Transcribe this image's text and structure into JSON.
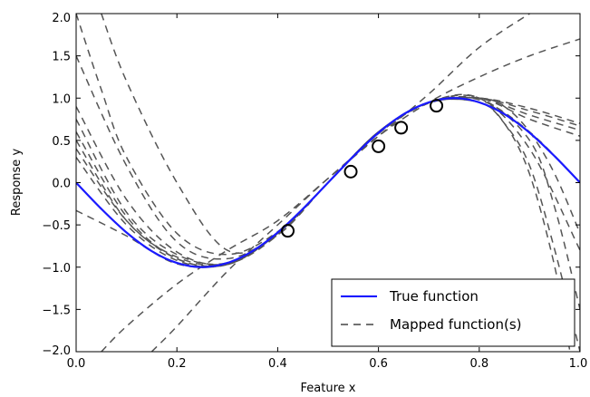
{
  "chart_data": {
    "type": "line",
    "title": "",
    "xlabel": "Feature x",
    "ylabel": "Response y",
    "xlim": [
      0.0,
      1.0
    ],
    "ylim": [
      -2.0,
      2.0
    ],
    "xticks": [
      "0.0",
      "0.2",
      "0.4",
      "0.6",
      "0.8",
      "1.0"
    ],
    "yticks": [
      "2.0",
      "1.5",
      "1.0",
      "0.5",
      "0.0",
      "−0.5",
      "−1.0",
      "−1.5",
      "−2.0"
    ],
    "grid": false,
    "legend": {
      "placement": "lower-right",
      "entries": [
        {
          "label": "True function",
          "style": "solid",
          "color": "#0000ff"
        },
        {
          "label": "Mapped function(s)",
          "style": "dashed",
          "color": "#444444"
        }
      ]
    },
    "colors": {
      "true_function": "#1a1aff",
      "mapped": "#555555",
      "points": "#000000"
    },
    "true_function": {
      "name": "True function",
      "x": [
        0.0,
        0.05,
        0.1,
        0.15,
        0.2,
        0.25,
        0.3,
        0.35,
        0.4,
        0.45,
        0.5,
        0.55,
        0.6,
        0.65,
        0.7,
        0.75,
        0.8,
        0.85,
        0.9,
        0.95,
        1.0
      ],
      "y": [
        0.0,
        -0.31,
        -0.59,
        -0.81,
        -0.95,
        -1.0,
        -0.95,
        -0.81,
        -0.59,
        -0.31,
        0.0,
        0.31,
        0.59,
        0.81,
        0.95,
        1.0,
        0.95,
        0.81,
        0.59,
        0.31,
        0.0
      ]
    },
    "observed_points": {
      "x": [
        0.42,
        0.545,
        0.6,
        0.645,
        0.715
      ],
      "y": [
        -0.57,
        0.13,
        0.43,
        0.65,
        0.91
      ]
    },
    "mapped_series": [
      {
        "x": [
          0.0,
          0.1,
          0.2,
          0.3,
          0.4,
          0.5,
          0.6,
          0.7,
          0.8,
          0.9,
          1.0
        ],
        "y": [
          -0.33,
          -0.63,
          -0.96,
          -0.96,
          -0.6,
          0.0,
          0.6,
          0.95,
          1.0,
          0.8,
          0.62
        ]
      },
      {
        "x": [
          0.0,
          0.1,
          0.2,
          0.3,
          0.4,
          0.5,
          0.6,
          0.7,
          0.8,
          0.9,
          1.0
        ],
        "y": [
          0.6,
          -0.4,
          -0.9,
          -0.96,
          -0.6,
          0.0,
          0.59,
          0.94,
          1.0,
          0.85,
          0.67
        ]
      },
      {
        "x": [
          0.0,
          0.1,
          0.2,
          0.3,
          0.4,
          0.5,
          0.6,
          0.7,
          0.8,
          0.9,
          1.0
        ],
        "y": [
          0.9,
          -0.2,
          -0.82,
          -0.96,
          -0.62,
          0.0,
          0.58,
          0.95,
          1.0,
          0.88,
          0.7
        ]
      },
      {
        "x": [
          0.0,
          0.1,
          0.2,
          0.3,
          0.4,
          0.5,
          0.6,
          0.7,
          0.8,
          0.9,
          1.0
        ],
        "y": [
          0.4,
          -0.45,
          -0.9,
          -0.97,
          -0.6,
          0.0,
          0.6,
          0.95,
          1.0,
          0.75,
          0.55
        ]
      },
      {
        "x": [
          0.0,
          0.1,
          0.2,
          0.3,
          0.4,
          0.5,
          0.6,
          0.7,
          0.8,
          0.9,
          1.0
        ],
        "y": [
          1.5,
          0.2,
          -0.7,
          -0.9,
          -0.6,
          0.0,
          0.6,
          0.95,
          0.98,
          0.6,
          0.0
        ]
      },
      {
        "x": [
          0.0,
          0.05,
          0.1,
          0.2,
          0.3,
          0.4,
          0.5,
          0.6,
          0.7,
          0.8,
          0.9,
          1.0
        ],
        "y": [
          2.0,
          1.1,
          0.3,
          -0.6,
          -0.85,
          -0.58,
          0.0,
          0.6,
          0.95,
          1.0,
          0.4,
          -0.8
        ]
      },
      {
        "x": [
          0.05,
          0.1,
          0.2,
          0.3,
          0.4,
          0.5,
          0.6,
          0.7,
          0.8,
          0.85,
          0.9,
          0.95,
          1.0
        ],
        "y": [
          2.0,
          1.2,
          0.0,
          -0.8,
          -0.62,
          0.0,
          0.58,
          0.95,
          0.95,
          0.7,
          0.2,
          -0.8,
          -2.0
        ]
      },
      {
        "x": [
          0.0,
          0.1,
          0.2,
          0.3,
          0.4,
          0.5,
          0.6,
          0.7,
          0.8,
          0.85,
          0.9,
          0.95,
          0.98
        ],
        "y": [
          0.75,
          -0.35,
          -0.85,
          -0.95,
          -0.6,
          0.0,
          0.6,
          0.95,
          0.95,
          0.7,
          0.1,
          -1.0,
          -2.0
        ]
      },
      {
        "x": [
          0.15,
          0.2,
          0.3,
          0.4,
          0.5,
          0.6,
          0.7,
          0.8,
          0.9,
          1.0
        ],
        "y": [
          -2.0,
          -1.7,
          -1.05,
          -0.5,
          0.05,
          0.55,
          0.95,
          1.25,
          1.5,
          1.7
        ]
      },
      {
        "x": [
          0.05,
          0.1,
          0.2,
          0.3,
          0.4,
          0.5,
          0.6,
          0.7,
          0.8,
          0.9
        ],
        "y": [
          -2.0,
          -1.7,
          -1.2,
          -0.8,
          -0.45,
          0.05,
          0.55,
          1.05,
          1.6,
          2.0
        ]
      },
      {
        "x": [
          0.0,
          0.1,
          0.2,
          0.3,
          0.4,
          0.5,
          0.6,
          0.7,
          0.8,
          0.85,
          0.9,
          0.95,
          1.0
        ],
        "y": [
          0.5,
          -0.45,
          -0.88,
          -0.96,
          -0.6,
          0.0,
          0.6,
          0.95,
          1.0,
          0.9,
          0.6,
          0.1,
          -0.6
        ]
      },
      {
        "x": [
          0.0,
          0.1,
          0.2,
          0.3,
          0.4,
          0.5,
          0.6,
          0.7,
          0.8,
          0.9,
          0.95,
          1.0
        ],
        "y": [
          0.3,
          -0.5,
          -0.92,
          -0.97,
          -0.6,
          0.0,
          0.6,
          0.95,
          1.0,
          0.5,
          -0.3,
          -1.5
        ]
      }
    ]
  }
}
